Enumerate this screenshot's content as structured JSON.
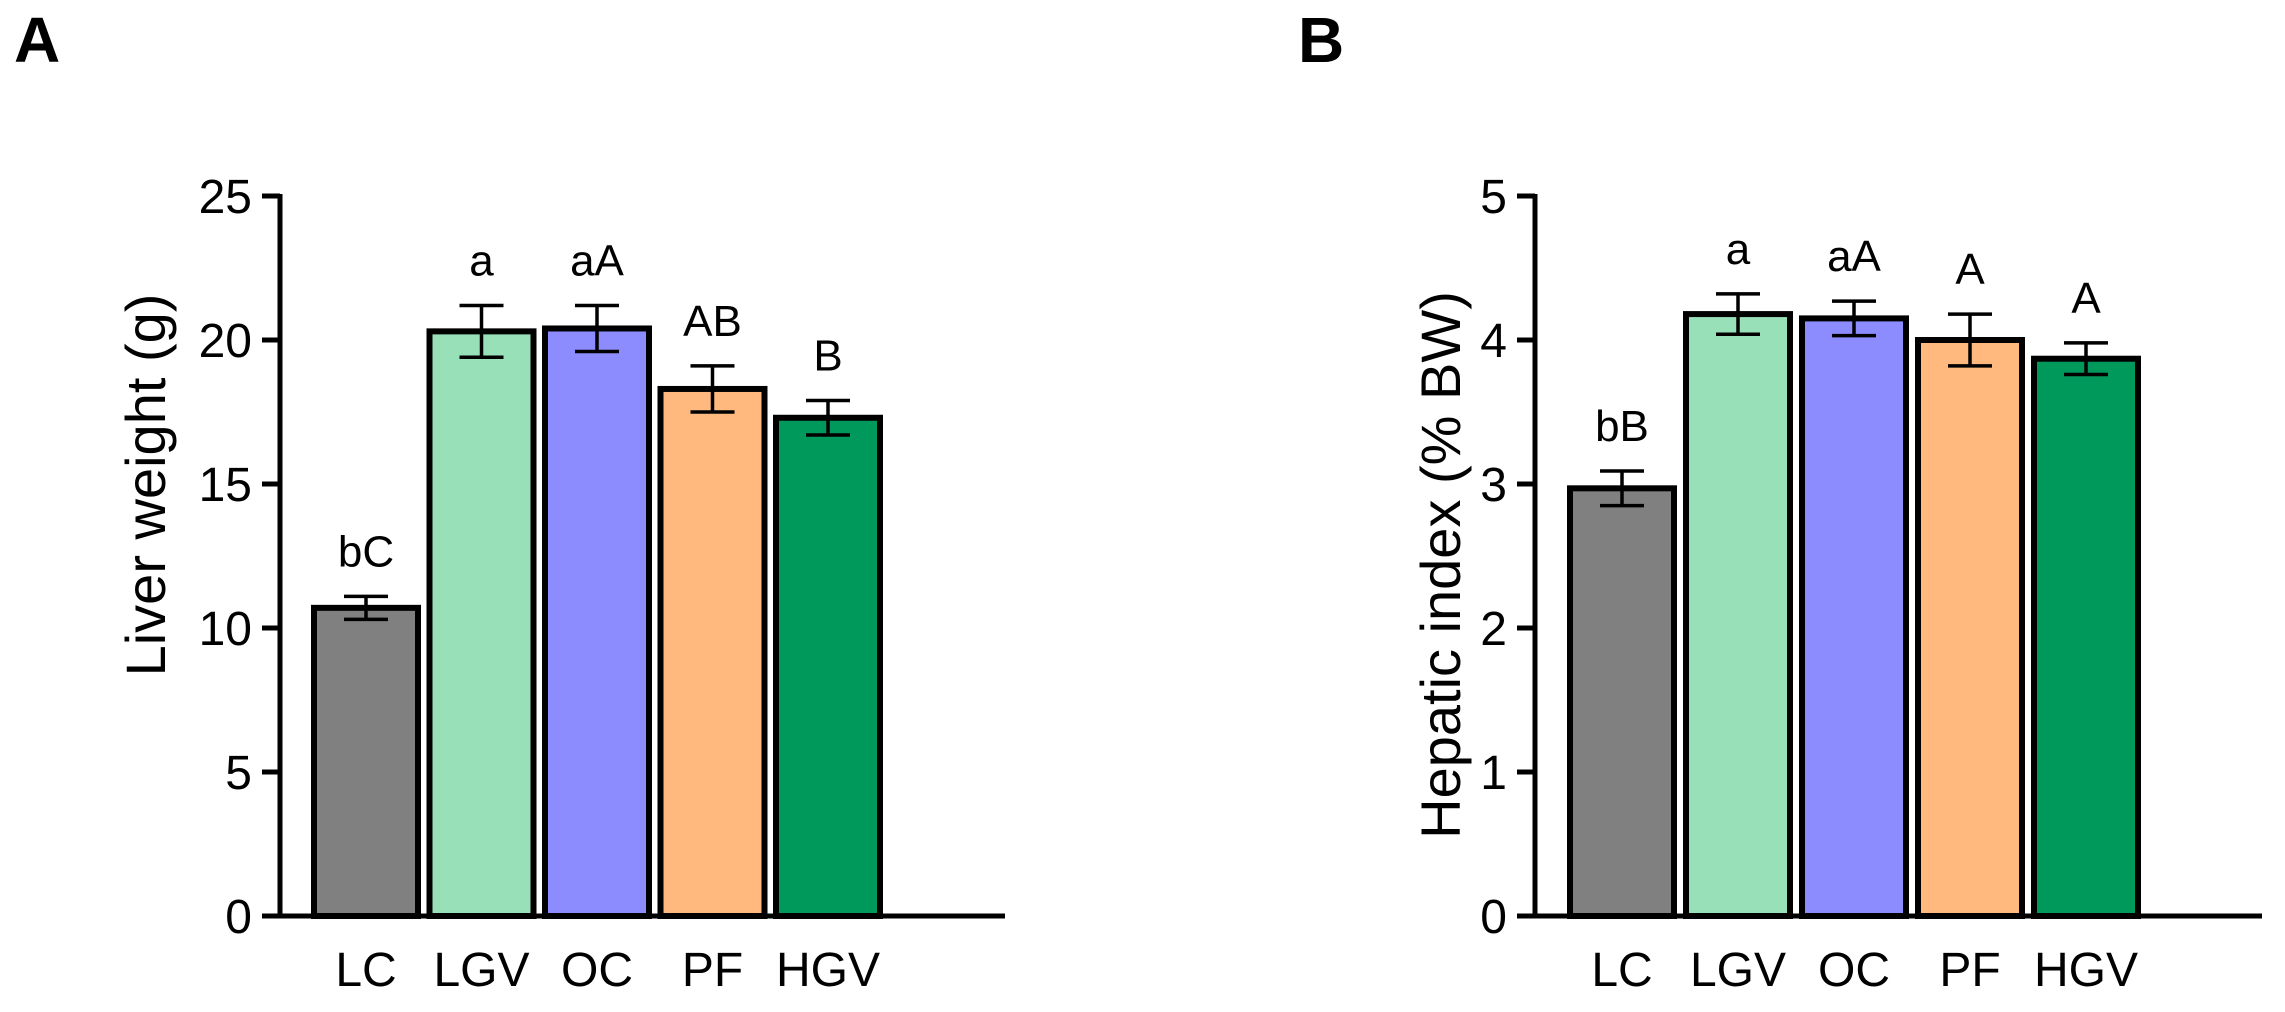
{
  "chart_data": [
    {
      "panel": "A",
      "type": "bar",
      "categories": [
        "LC",
        "LGV",
        "OC",
        "PF",
        "HGV"
      ],
      "values": [
        10.7,
        20.3,
        20.4,
        18.3,
        17.3
      ],
      "errors": [
        0.4,
        0.9,
        0.8,
        0.8,
        0.6
      ],
      "sig_labels": [
        "bC",
        "a",
        "aA",
        "AB",
        "B"
      ],
      "colors": [
        "#808080",
        "#98e1b8",
        "#8c8cff",
        "#ffb87d",
        "#00995c"
      ],
      "ylabel": "Liver weight (g)",
      "ylim": [
        0,
        25
      ],
      "yticks": [
        0,
        5,
        10,
        15,
        20,
        25
      ],
      "grid": false
    },
    {
      "panel": "B",
      "type": "bar",
      "categories": [
        "LC",
        "LGV",
        "OC",
        "PF",
        "HGV"
      ],
      "values": [
        2.97,
        4.18,
        4.15,
        4.0,
        3.87
      ],
      "errors": [
        0.12,
        0.14,
        0.12,
        0.18,
        0.11
      ],
      "sig_labels": [
        "bB",
        "a",
        "aA",
        "A",
        "A"
      ],
      "colors": [
        "#808080",
        "#98e1b8",
        "#8c8cff",
        "#ffb87d",
        "#00995c"
      ],
      "ylabel": "Hepatic index (% BW)",
      "ylim": [
        0,
        5
      ],
      "yticks": [
        0,
        1,
        2,
        3,
        4,
        5
      ],
      "grid": false
    }
  ]
}
